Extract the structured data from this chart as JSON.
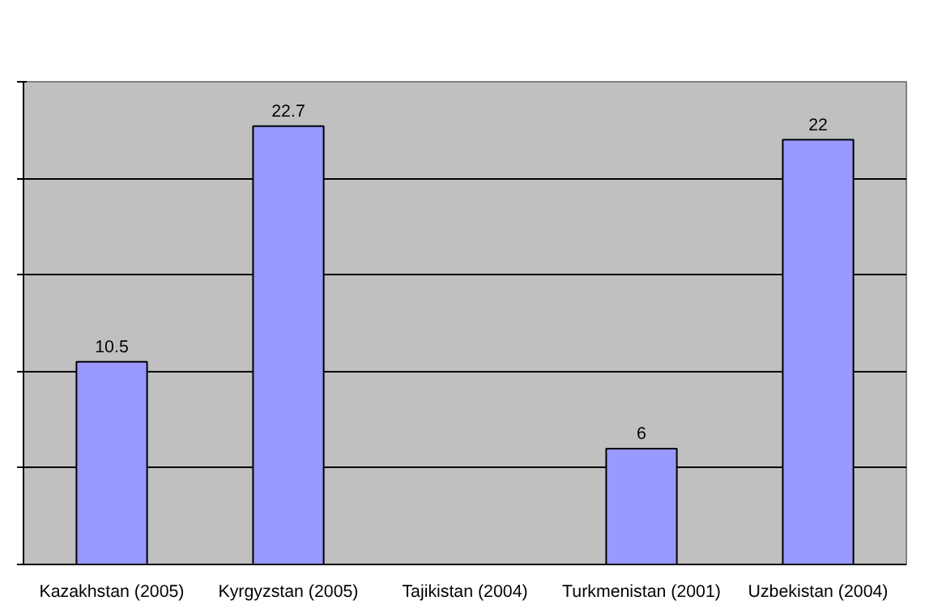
{
  "chart_data": {
    "type": "bar",
    "categories": [
      "Kazakhstan (2005)",
      "Kyrgyzstan (2005)",
      "Tajikistan (2004)",
      "Turkmenistan (2001)",
      "Uzbekistan (2004)"
    ],
    "series": [
      {
        "color": "#9999ff",
        "values": [
          10.5,
          22.7,
          null,
          6,
          22
        ]
      }
    ],
    "ylim": [
      0,
      25
    ],
    "yticks": [
      {
        "value": 0,
        "label": null
      },
      {
        "value": 5,
        "label": null
      },
      {
        "value": 10,
        "label": null
      },
      {
        "value": 15,
        "label": null
      },
      {
        "value": 20,
        "label": null
      },
      {
        "value": 25,
        "label": null
      }
    ],
    "tick_labels": "x",
    "grid": "y",
    "data_labels": true
  }
}
